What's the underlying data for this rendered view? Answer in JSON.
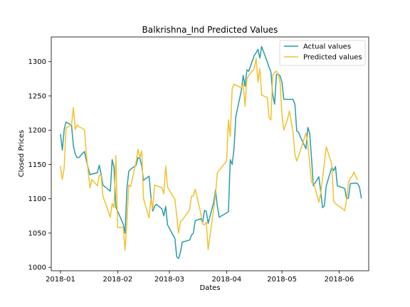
{
  "chart_data": {
    "type": "line",
    "title": "Balkrishna_Ind Predicted Values",
    "xlabel": "Dates",
    "ylabel": "Closed Prices",
    "xlim": [
      "2017-12-27",
      "2018-06-17"
    ],
    "ylim": [
      995,
      1336
    ],
    "x_ticks": [
      "2018-01-01",
      "2018-02-01",
      "2018-03-01",
      "2018-04-01",
      "2018-05-01",
      "2018-06-01"
    ],
    "x_tick_labels": [
      "2018-01",
      "2018-02",
      "2018-03",
      "2018-04",
      "2018-05",
      "2018-06"
    ],
    "y_ticks": [
      1000,
      1050,
      1100,
      1150,
      1200,
      1250,
      1300
    ],
    "y_tick_labels": [
      "1000",
      "1050",
      "1100",
      "1150",
      "1200",
      "1250",
      "1300"
    ],
    "grid": false,
    "legend_position": "top-right",
    "series": [
      {
        "name": "Actual values",
        "color": "#2a9ba8",
        "points": [
          [
            "2018-01-01",
            1194
          ],
          [
            "2018-01-02",
            1171
          ],
          [
            "2018-01-03",
            1201
          ],
          [
            "2018-01-04",
            1212
          ],
          [
            "2018-01-07",
            1207
          ],
          [
            "2018-01-08",
            1177
          ],
          [
            "2018-01-09",
            1165
          ],
          [
            "2018-01-10",
            1160
          ],
          [
            "2018-01-11",
            1160
          ],
          [
            "2018-01-14",
            1169
          ],
          [
            "2018-01-15",
            1156
          ],
          [
            "2018-01-16",
            1145
          ],
          [
            "2018-01-17",
            1135
          ],
          [
            "2018-01-18",
            1136
          ],
          [
            "2018-01-21",
            1138
          ],
          [
            "2018-01-22",
            1149
          ],
          [
            "2018-01-23",
            1136
          ],
          [
            "2018-01-24",
            1120
          ],
          [
            "2018-01-28",
            1111
          ],
          [
            "2018-01-29",
            1157
          ],
          [
            "2018-01-30",
            1146
          ],
          [
            "2018-01-31",
            1088
          ],
          [
            "2018-02-04",
            1063
          ],
          [
            "2018-02-05",
            1050
          ],
          [
            "2018-02-06",
            1115
          ],
          [
            "2018-02-07",
            1140
          ],
          [
            "2018-02-08",
            1143
          ],
          [
            "2018-02-11",
            1149
          ],
          [
            "2018-02-12",
            1160
          ],
          [
            "2018-02-13",
            1159
          ],
          [
            "2018-02-14",
            1148
          ],
          [
            "2018-02-15",
            1127
          ],
          [
            "2018-02-18",
            1133
          ],
          [
            "2018-02-19",
            1103
          ],
          [
            "2018-02-20",
            1082
          ],
          [
            "2018-02-21",
            1089
          ],
          [
            "2018-02-22",
            1092
          ],
          [
            "2018-02-25",
            1085
          ],
          [
            "2018-02-26",
            1075
          ],
          [
            "2018-02-27",
            1089
          ],
          [
            "2018-02-28",
            1062
          ],
          [
            "2018-03-04",
            1042
          ],
          [
            "2018-03-05",
            1015
          ],
          [
            "2018-03-06",
            1013
          ],
          [
            "2018-03-07",
            1022
          ],
          [
            "2018-03-08",
            1037
          ],
          [
            "2018-03-11",
            1039
          ],
          [
            "2018-03-12",
            1040
          ],
          [
            "2018-03-13",
            1047
          ],
          [
            "2018-03-14",
            1050
          ],
          [
            "2018-03-15",
            1068
          ],
          [
            "2018-03-18",
            1071
          ],
          [
            "2018-03-19",
            1065
          ],
          [
            "2018-03-20",
            1083
          ],
          [
            "2018-03-21",
            1082
          ],
          [
            "2018-03-22",
            1064
          ],
          [
            "2018-03-25",
            1095
          ],
          [
            "2018-03-26",
            1113
          ],
          [
            "2018-03-27",
            1089
          ],
          [
            "2018-03-28",
            1073
          ],
          [
            "2018-04-02",
            1081
          ],
          [
            "2018-04-03",
            1157
          ],
          [
            "2018-04-04",
            1150
          ],
          [
            "2018-04-05",
            1172
          ],
          [
            "2018-04-06",
            1220
          ],
          [
            "2018-04-09",
            1258
          ],
          [
            "2018-04-10",
            1280
          ],
          [
            "2018-04-11",
            1264
          ],
          [
            "2018-04-12",
            1288
          ],
          [
            "2018-04-13",
            1286
          ],
          [
            "2018-04-16",
            1309
          ],
          [
            "2018-04-17",
            1313
          ],
          [
            "2018-04-18",
            1318
          ],
          [
            "2018-04-19",
            1305
          ],
          [
            "2018-04-20",
            1322
          ],
          [
            "2018-04-23",
            1300
          ],
          [
            "2018-04-24",
            1292
          ],
          [
            "2018-04-25",
            1285
          ],
          [
            "2018-04-26",
            1252
          ],
          [
            "2018-04-27",
            1238
          ],
          [
            "2018-04-28",
            1281
          ],
          [
            "2018-04-29",
            1282
          ],
          [
            "2018-04-30",
            1279
          ],
          [
            "2018-05-01",
            1270
          ],
          [
            "2018-05-02",
            1245
          ],
          [
            "2018-05-04",
            1245
          ],
          [
            "2018-05-07",
            1245
          ],
          [
            "2018-05-08",
            1238
          ],
          [
            "2018-05-09",
            1199
          ],
          [
            "2018-05-10",
            1197
          ],
          [
            "2018-05-11",
            1190
          ],
          [
            "2018-05-14",
            1173
          ],
          [
            "2018-05-15",
            1204
          ],
          [
            "2018-05-16",
            1196
          ],
          [
            "2018-05-17",
            1160
          ],
          [
            "2018-05-18",
            1119
          ],
          [
            "2018-05-21",
            1132
          ],
          [
            "2018-05-22",
            1110
          ],
          [
            "2018-05-23",
            1087
          ],
          [
            "2018-05-24",
            1090
          ],
          [
            "2018-05-25",
            1119
          ],
          [
            "2018-05-28",
            1146
          ],
          [
            "2018-05-29",
            1141
          ],
          [
            "2018-05-30",
            1147
          ],
          [
            "2018-05-31",
            1119
          ],
          [
            "2018-06-04",
            1115
          ],
          [
            "2018-06-05",
            1100
          ],
          [
            "2018-06-06",
            1101
          ],
          [
            "2018-06-07",
            1122
          ],
          [
            "2018-06-10",
            1123
          ],
          [
            "2018-06-11",
            1122
          ],
          [
            "2018-06-12",
            1117
          ],
          [
            "2018-06-13",
            1101
          ]
        ]
      },
      {
        "name": "Predicted values",
        "color": "#f2c12e",
        "points": [
          [
            "2018-01-01",
            1147
          ],
          [
            "2018-01-02",
            1128
          ],
          [
            "2018-01-03",
            1145
          ],
          [
            "2018-01-04",
            1203
          ],
          [
            "2018-01-07",
            1208
          ],
          [
            "2018-01-08",
            1233
          ],
          [
            "2018-01-09",
            1201
          ],
          [
            "2018-01-10",
            1208
          ],
          [
            "2018-01-11",
            1205
          ],
          [
            "2018-01-14",
            1201
          ],
          [
            "2018-01-15",
            1165
          ],
          [
            "2018-01-16",
            1140
          ],
          [
            "2018-01-17",
            1116
          ],
          [
            "2018-01-18",
            1128
          ],
          [
            "2018-01-21",
            1119
          ],
          [
            "2018-01-22",
            1134
          ],
          [
            "2018-01-23",
            1134
          ],
          [
            "2018-01-24",
            1104
          ],
          [
            "2018-01-28",
            1073
          ],
          [
            "2018-01-29",
            1093
          ],
          [
            "2018-01-30",
            1087
          ],
          [
            "2018-01-31",
            1163
          ],
          [
            "2018-02-01",
            1058
          ],
          [
            "2018-02-04",
            1058
          ],
          [
            "2018-02-05",
            1025
          ],
          [
            "2018-02-06",
            1067
          ],
          [
            "2018-02-07",
            1120
          ],
          [
            "2018-02-08",
            1118
          ],
          [
            "2018-02-11",
            1154
          ],
          [
            "2018-02-12",
            1172
          ],
          [
            "2018-02-13",
            1160
          ],
          [
            "2018-02-14",
            1170
          ],
          [
            "2018-02-15",
            1100
          ],
          [
            "2018-02-18",
            1072
          ],
          [
            "2018-02-19",
            1100
          ],
          [
            "2018-02-20",
            1085
          ],
          [
            "2018-02-21",
            1120
          ],
          [
            "2018-02-22",
            1119
          ],
          [
            "2018-02-25",
            1116
          ],
          [
            "2018-02-26",
            1107
          ],
          [
            "2018-02-27",
            1148
          ],
          [
            "2018-02-28",
            1117
          ],
          [
            "2018-03-04",
            1099
          ],
          [
            "2018-03-05",
            1075
          ],
          [
            "2018-03-06",
            1050
          ],
          [
            "2018-03-07",
            1066
          ],
          [
            "2018-03-11",
            1080
          ],
          [
            "2018-03-12",
            1085
          ],
          [
            "2018-03-13",
            1104
          ],
          [
            "2018-03-14",
            1104
          ],
          [
            "2018-03-15",
            1114
          ],
          [
            "2018-03-18",
            1079
          ],
          [
            "2018-03-19",
            1063
          ],
          [
            "2018-03-20",
            1062
          ],
          [
            "2018-03-21",
            1066
          ],
          [
            "2018-03-22",
            1026
          ],
          [
            "2018-03-25",
            1085
          ],
          [
            "2018-03-26",
            1107
          ],
          [
            "2018-03-27",
            1138
          ],
          [
            "2018-04-01",
            1155
          ],
          [
            "2018-04-02",
            1215
          ],
          [
            "2018-04-03",
            1191
          ],
          [
            "2018-04-04",
            1260
          ],
          [
            "2018-04-05",
            1267
          ],
          [
            "2018-04-09",
            1262
          ],
          [
            "2018-04-10",
            1268
          ],
          [
            "2018-04-11",
            1235
          ],
          [
            "2018-04-12",
            1275
          ],
          [
            "2018-04-13",
            1280
          ],
          [
            "2018-04-16",
            1290
          ],
          [
            "2018-04-17",
            1305
          ],
          [
            "2018-04-18",
            1270
          ],
          [
            "2018-04-19",
            1290
          ],
          [
            "2018-04-20",
            1251
          ],
          [
            "2018-04-23",
            1248
          ],
          [
            "2018-04-24",
            1218
          ],
          [
            "2018-04-25",
            1215
          ],
          [
            "2018-04-26",
            1280
          ],
          [
            "2018-04-27",
            1284
          ],
          [
            "2018-04-28",
            1286
          ],
          [
            "2018-04-29",
            1282
          ],
          [
            "2018-04-30",
            1270
          ],
          [
            "2018-05-01",
            1222
          ],
          [
            "2018-05-02",
            1200
          ],
          [
            "2018-05-04",
            1216
          ],
          [
            "2018-05-05",
            1228
          ],
          [
            "2018-05-07",
            1197
          ],
          [
            "2018-05-08",
            1165
          ],
          [
            "2018-05-09",
            1155
          ],
          [
            "2018-05-10",
            1162
          ],
          [
            "2018-05-14",
            1196
          ],
          [
            "2018-05-15",
            1180
          ],
          [
            "2018-05-16",
            1152
          ],
          [
            "2018-05-17",
            1124
          ],
          [
            "2018-05-18",
            1125
          ],
          [
            "2018-05-21",
            1095
          ],
          [
            "2018-05-22",
            1108
          ],
          [
            "2018-05-23",
            1130
          ],
          [
            "2018-05-25",
            1176
          ],
          [
            "2018-05-28",
            1150
          ],
          [
            "2018-05-29",
            1096
          ],
          [
            "2018-05-30",
            1093
          ],
          [
            "2018-06-04",
            1083
          ],
          [
            "2018-06-05",
            1098
          ],
          [
            "2018-06-06",
            1124
          ],
          [
            "2018-06-07",
            1129
          ],
          [
            "2018-06-08",
            1133
          ],
          [
            "2018-06-09",
            1139
          ],
          [
            "2018-06-10",
            1132
          ],
          [
            "2018-06-11",
            1128
          ]
        ]
      }
    ]
  }
}
